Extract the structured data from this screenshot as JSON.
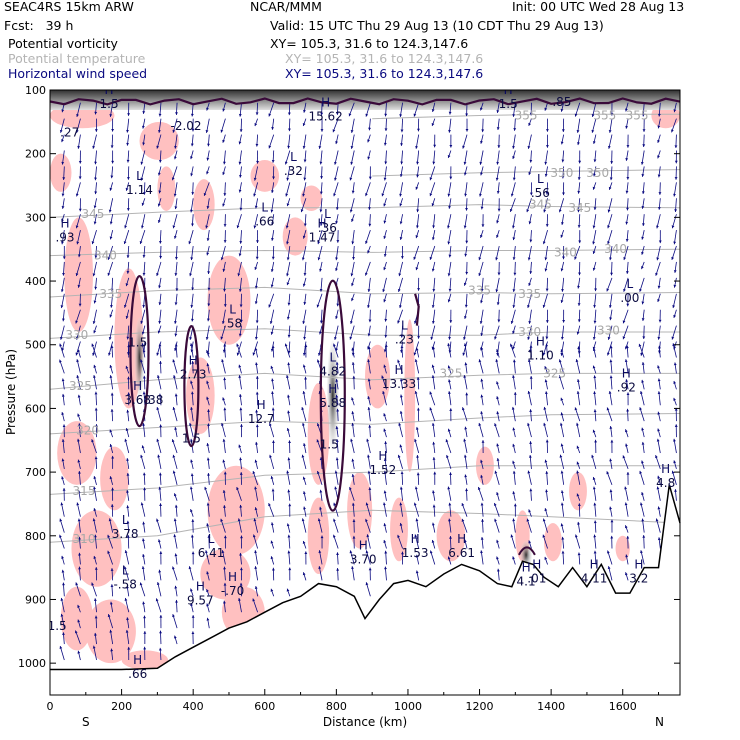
{
  "header": {
    "model": "SEAC4RS 15km ARW",
    "center": "NCAR/MMM",
    "init": "Init: 00 UTC Wed 28 Aug 13",
    "fcst": "Fcst:   39 h",
    "valid": "Valid: 15 UTC Thu 29 Aug 13 (10 CDT Thu 29 Aug 13)",
    "fields": [
      {
        "name": "Potential vorticity",
        "xy": "XY= 105.3, 31.6 to 124.3,147.6",
        "color": "#000000"
      },
      {
        "name": "Potential temperature",
        "xy": "XY= 105.3, 31.6 to 124.3,147.6",
        "color": "#b4b4b4"
      },
      {
        "name": "Horizontal wind speed",
        "xy": "XY= 105.3, 31.6 to 124.3,147.6",
        "color": "#0a0a80"
      }
    ]
  },
  "chart_data": {
    "type": "cross-section",
    "xlabel": "Distance (km)",
    "ylabel": "Pressure (hPa)",
    "xlim": [
      0,
      1760
    ],
    "ylim": [
      1050,
      100
    ],
    "xticks": [
      "0",
      "200",
      "400",
      "600",
      "800",
      "1000",
      "1200",
      "1400",
      "1600"
    ],
    "yticks": [
      "100",
      "200",
      "300",
      "400",
      "500",
      "600",
      "700",
      "800",
      "900",
      "1000"
    ],
    "endpoints": {
      "left": "S",
      "right": "N"
    },
    "theta_labels": [
      {
        "text": "355",
        "x": 1330,
        "p": 140
      },
      {
        "text": "355",
        "x": 1550,
        "p": 140
      },
      {
        "text": "355",
        "x": 1640,
        "p": 140
      },
      {
        "text": "350",
        "x": 1430,
        "p": 230
      },
      {
        "text": "350",
        "x": 1530,
        "p": 230
      },
      {
        "text": "345",
        "x": 120,
        "p": 295
      },
      {
        "text": "345",
        "x": 1370,
        "p": 280
      },
      {
        "text": "345",
        "x": 1480,
        "p": 285
      },
      {
        "text": "340",
        "x": 155,
        "p": 360
      },
      {
        "text": "340",
        "x": 1440,
        "p": 355
      },
      {
        "text": "340",
        "x": 1580,
        "p": 350
      },
      {
        "text": "335",
        "x": 170,
        "p": 420
      },
      {
        "text": "335",
        "x": 1200,
        "p": 415
      },
      {
        "text": "335",
        "x": 1340,
        "p": 420
      },
      {
        "text": "330",
        "x": 75,
        "p": 485
      },
      {
        "text": "330",
        "x": 1340,
        "p": 480
      },
      {
        "text": "330",
        "x": 1560,
        "p": 478
      },
      {
        "text": "325",
        "x": 85,
        "p": 565
      },
      {
        "text": "325",
        "x": 1120,
        "p": 545
      },
      {
        "text": "325",
        "x": 1410,
        "p": 545
      },
      {
        "text": "320",
        "x": 105,
        "p": 635
      },
      {
        "text": "315",
        "x": 95,
        "p": 730
      },
      {
        "text": "310",
        "x": 95,
        "p": 805
      }
    ],
    "theta_lines": [
      {
        "x": [
          0,
          300,
          600,
          900,
          1200,
          1400,
          1760
        ],
        "p": [
          300,
          292,
          285,
          285,
          280,
          283,
          285
        ]
      },
      {
        "x": [
          0,
          300,
          600,
          900,
          1200,
          1400,
          1760
        ],
        "p": [
          360,
          355,
          352,
          355,
          352,
          352,
          350
        ]
      },
      {
        "x": [
          0,
          300,
          600,
          900,
          1200,
          1400,
          1760
        ],
        "p": [
          425,
          415,
          410,
          420,
          418,
          420,
          418
        ]
      },
      {
        "x": [
          0,
          300,
          600,
          900,
          1200,
          1400,
          1760
        ],
        "p": [
          490,
          480,
          475,
          485,
          485,
          480,
          480
        ]
      },
      {
        "x": [
          0,
          300,
          600,
          900,
          1200,
          1400,
          1760
        ],
        "p": [
          570,
          555,
          545,
          555,
          548,
          545,
          545
        ]
      },
      {
        "x": [
          0,
          300,
          600,
          900,
          1200,
          1400,
          1760
        ],
        "p": [
          640,
          630,
          620,
          625,
          615,
          610,
          608
        ]
      },
      {
        "x": [
          0,
          300,
          600,
          900,
          1200,
          1400,
          1760
        ],
        "p": [
          735,
          725,
          705,
          700,
          690,
          690,
          690
        ]
      },
      {
        "x": [
          0,
          300,
          600,
          900,
          1200,
          1400,
          1760
        ],
        "p": [
          810,
          800,
          770,
          760,
          765,
          770,
          780
        ]
      },
      {
        "x": [
          900,
          1200,
          1400,
          1760
        ],
        "p": [
          235,
          230,
          228,
          225
        ]
      },
      {
        "x": [
          900,
          1200,
          1400,
          1760
        ],
        "p": [
          145,
          140,
          138,
          138
        ]
      }
    ],
    "extrema_labels": [
      {
        "letter": "H",
        "value": "1.5",
        "x": 165,
        "p": 125
      },
      {
        "letter": "H",
        "value": "1.5",
        "x": 1280,
        "p": 125
      },
      {
        "letter": "",
        "value": ".85",
        "x": 1430,
        "p": 122
      },
      {
        "letter": "",
        "value": ".27",
        "x": 55,
        "p": 170
      },
      {
        "letter": "",
        "value": "-2.02",
        "x": 380,
        "p": 160
      },
      {
        "letter": "H",
        "value": "15.62",
        "x": 770,
        "p": 145
      },
      {
        "letter": "L",
        "value": ".32",
        "x": 680,
        "p": 230
      },
      {
        "letter": "L",
        "value": "1.14",
        "x": 250,
        "p": 260
      },
      {
        "letter": "L",
        "value": ".56",
        "x": 1370,
        "p": 265
      },
      {
        "letter": "L",
        "value": ".66",
        "x": 600,
        "p": 310
      },
      {
        "letter": "L",
        "value": ".36",
        "x": 775,
        "p": 320
      },
      {
        "letter": "H",
        "value": "1.47",
        "x": 760,
        "p": 335
      },
      {
        "letter": "H",
        "value": ".93",
        "x": 42,
        "p": 335
      },
      {
        "letter": "L",
        "value": ".58",
        "x": 510,
        "p": 470
      },
      {
        "letter": "L",
        "value": ".00",
        "x": 1620,
        "p": 430
      },
      {
        "letter": "L",
        "value": ".23",
        "x": 990,
        "p": 495
      },
      {
        "letter": "",
        "value": "1.5",
        "x": 245,
        "p": 500
      },
      {
        "letter": "H",
        "value": "1.10",
        "x": 1370,
        "p": 520
      },
      {
        "letter": "H",
        "value": "2.73",
        "x": 400,
        "p": 550
      },
      {
        "letter": "L",
        "value": "4.82",
        "x": 790,
        "p": 545
      },
      {
        "letter": "H",
        "value": "13.33",
        "x": 975,
        "p": 565
      },
      {
        "letter": "H",
        "value": ".92",
        "x": 1610,
        "p": 570
      },
      {
        "letter": "H",
        "value": "3.68",
        "x": 245,
        "p": 590
      },
      {
        "letter": "",
        "value": ".38",
        "x": 290,
        "p": 590
      },
      {
        "letter": "H",
        "value": "5.88",
        "x": 790,
        "p": 595
      },
      {
        "letter": "H",
        "value": "12.7",
        "x": 590,
        "p": 620
      },
      {
        "letter": "",
        "value": "1.5",
        "x": 395,
        "p": 650
      },
      {
        "letter": "",
        "value": "1.5",
        "x": 780,
        "p": 660
      },
      {
        "letter": "H",
        "value": "1.52",
        "x": 930,
        "p": 700
      },
      {
        "letter": "H",
        "value": "4.8",
        "x": 1720,
        "p": 720
      },
      {
        "letter": "L",
        "value": "3.78",
        "x": 210,
        "p": 800
      },
      {
        "letter": "L",
        "value": "6.41",
        "x": 450,
        "p": 830
      },
      {
        "letter": "H",
        "value": "3.70",
        "x": 875,
        "p": 840
      },
      {
        "letter": "H",
        "value": "1.53",
        "x": 1020,
        "p": 830
      },
      {
        "letter": "H",
        "value": "6.61",
        "x": 1150,
        "p": 830
      },
      {
        "letter": "H",
        "value": "4.11",
        "x": 1520,
        "p": 870
      },
      {
        "letter": "H",
        "value": "3.2",
        "x": 1645,
        "p": 870
      },
      {
        "letter": "H",
        "value": "4.1",
        "x": 1330,
        "p": 875
      },
      {
        "letter": "H",
        "value": ".01",
        "x": 1360,
        "p": 870
      },
      {
        "letter": "L",
        "value": "-.58",
        "x": 210,
        "p": 880
      },
      {
        "letter": "H",
        "value": "-.70",
        "x": 510,
        "p": 890
      },
      {
        "letter": "H",
        "value": "9.57",
        "x": 420,
        "p": 905
      },
      {
        "letter": "",
        "value": "1.5",
        "x": 20,
        "p": 945
      },
      {
        "letter": "H",
        "value": ".66",
        "x": 245,
        "p": 1020
      }
    ],
    "terrain": {
      "x": [
        0,
        100,
        200,
        300,
        350,
        400,
        450,
        500,
        550,
        600,
        650,
        700,
        750,
        800,
        850,
        880,
        920,
        960,
        1000,
        1050,
        1100,
        1150,
        1200,
        1250,
        1290,
        1320,
        1350,
        1380,
        1420,
        1460,
        1500,
        1540,
        1580,
        1620,
        1660,
        1700,
        1730,
        1760
      ],
      "p": [
        1010,
        1010,
        1010,
        1008,
        990,
        975,
        960,
        945,
        935,
        920,
        905,
        895,
        875,
        880,
        895,
        930,
        900,
        875,
        870,
        880,
        860,
        845,
        855,
        875,
        880,
        840,
        845,
        865,
        880,
        850,
        880,
        845,
        890,
        890,
        850,
        850,
        720,
        780
      ]
    },
    "pv_shading_color": "#ffc0c0",
    "wind_color": "#0a0a80",
    "pv_contour_color": "#3a0a3a"
  }
}
